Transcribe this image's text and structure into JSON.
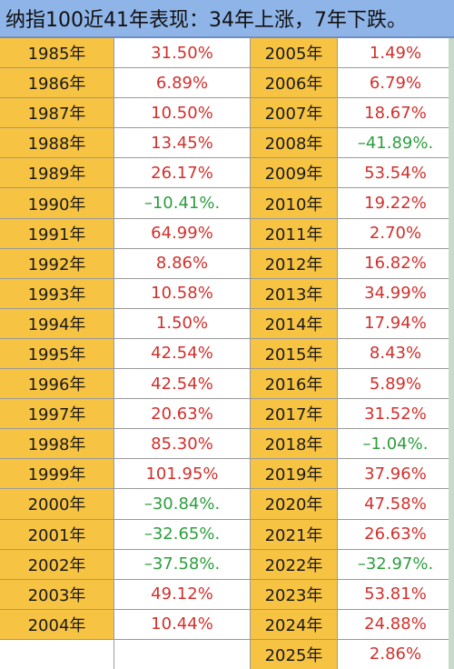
{
  "title": "纳指100近41年表现：34年上涨，7年下跌。",
  "colors": {
    "year_bg": "#f6c343",
    "up": "#d0312d",
    "down": "#2e9e3e",
    "title_bg": "#8fb4e8"
  },
  "left_rows": [
    {
      "year": "1985年",
      "value": "31.50%",
      "dir": "up"
    },
    {
      "year": "1986年",
      "value": "6.89%",
      "dir": "up"
    },
    {
      "year": "1987年",
      "value": "10.50%",
      "dir": "up"
    },
    {
      "year": "1988年",
      "value": "13.45%",
      "dir": "up"
    },
    {
      "year": "1989年",
      "value": "26.17%",
      "dir": "up"
    },
    {
      "year": "1990年",
      "value": "–10.41%.",
      "dir": "down"
    },
    {
      "year": "1991年",
      "value": "64.99%",
      "dir": "up"
    },
    {
      "year": "1992年",
      "value": "8.86%",
      "dir": "up"
    },
    {
      "year": "1993年",
      "value": "10.58%",
      "dir": "up"
    },
    {
      "year": "1994年",
      "value": "1.50%",
      "dir": "up"
    },
    {
      "year": "1995年",
      "value": "42.54%",
      "dir": "up"
    },
    {
      "year": "1996年",
      "value": "42.54%",
      "dir": "up"
    },
    {
      "year": "1997年",
      "value": "20.63%",
      "dir": "up"
    },
    {
      "year": "1998年",
      "value": "85.30%",
      "dir": "up"
    },
    {
      "year": "1999年",
      "value": "101.95%",
      "dir": "up"
    },
    {
      "year": "2000年",
      "value": "–30.84%.",
      "dir": "down"
    },
    {
      "year": "2001年",
      "value": "–32.65%.",
      "dir": "down"
    },
    {
      "year": "2002年",
      "value": "–37.58%.",
      "dir": "down"
    },
    {
      "year": "2003年",
      "value": "49.12%",
      "dir": "up"
    },
    {
      "year": "2004年",
      "value": "10.44%",
      "dir": "up"
    },
    {
      "year": "",
      "value": "",
      "dir": "none"
    }
  ],
  "right_rows": [
    {
      "year": "2005年",
      "value": "1.49%",
      "dir": "up"
    },
    {
      "year": "2006年",
      "value": "6.79%",
      "dir": "up"
    },
    {
      "year": "2007年",
      "value": "18.67%",
      "dir": "up"
    },
    {
      "year": "2008年",
      "value": "–41.89%.",
      "dir": "down"
    },
    {
      "year": "2009年",
      "value": "53.54%",
      "dir": "up"
    },
    {
      "year": "2010年",
      "value": "19.22%",
      "dir": "up"
    },
    {
      "year": "2011年",
      "value": "2.70%",
      "dir": "up"
    },
    {
      "year": "2012年",
      "value": "16.82%",
      "dir": "up"
    },
    {
      "year": "2013年",
      "value": "34.99%",
      "dir": "up"
    },
    {
      "year": "2014年",
      "value": "17.94%",
      "dir": "up"
    },
    {
      "year": "2015年",
      "value": "8.43%",
      "dir": "up"
    },
    {
      "year": "2016年",
      "value": "5.89%",
      "dir": "up"
    },
    {
      "year": "2017年",
      "value": "31.52%",
      "dir": "up"
    },
    {
      "year": "2018年",
      "value": "–1.04%.",
      "dir": "down"
    },
    {
      "year": "2019年",
      "value": "37.96%",
      "dir": "up"
    },
    {
      "year": "2020年",
      "value": "47.58%",
      "dir": "up"
    },
    {
      "year": "2021年",
      "value": "26.63%",
      "dir": "up"
    },
    {
      "year": "2022年",
      "value": "–32.97%.",
      "dir": "down"
    },
    {
      "year": "2023年",
      "value": "53.81%",
      "dir": "up"
    },
    {
      "year": "2024年",
      "value": "24.88%",
      "dir": "up"
    },
    {
      "year": "2025年",
      "value": "2.86%",
      "dir": "up"
    }
  ]
}
